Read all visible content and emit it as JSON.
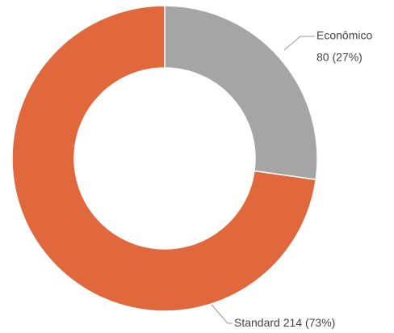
{
  "chart_data": {
    "type": "donut",
    "categories": [
      "Econômico",
      "Standard"
    ],
    "values": [
      80,
      214
    ],
    "value_labels": [
      "80 (27%)",
      "214 (73%)"
    ],
    "colors": [
      "#a5a5a5",
      "#e0683c"
    ]
  }
}
